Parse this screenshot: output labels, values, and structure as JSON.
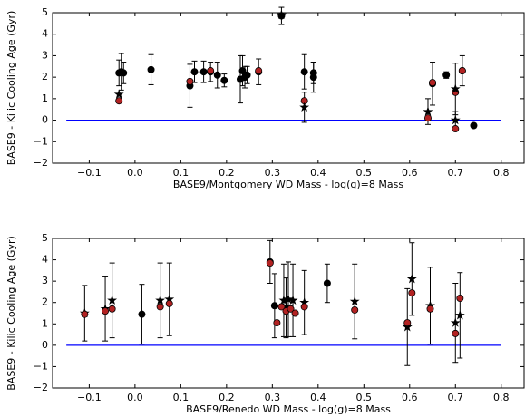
{
  "chart_data": [
    {
      "type": "scatter",
      "x_label": "BASE9/Montgomery WD Mass - log(g)=8 Mass",
      "y_label": "BASE9 - Kilic Cooling Age (Gyr)",
      "xlim": [
        -0.18,
        0.85
      ],
      "ylim": [
        -2,
        5
      ],
      "xticks": [
        {
          "value": -0.1,
          "label": "−0.1"
        },
        {
          "value": 0,
          "label": "0.0"
        },
        0.1,
        0.2,
        0.3,
        0.4,
        0.5,
        0.6,
        0.7,
        0.8
      ],
      "yticks": [
        {
          "value": -2,
          "label": "−2"
        },
        {
          "value": -1,
          "label": "−1"
        },
        0,
        1,
        2,
        3,
        4,
        5
      ],
      "hline": {
        "y": 0,
        "xmin": -0.15,
        "xmax": 0.8,
        "color": "#0000ff"
      },
      "series": [
        {
          "marker": "circle",
          "color": "#000000",
          "x": [
            -0.035,
            -0.03,
            -0.025,
            0.035,
            0.12,
            0.13,
            0.15,
            0.165,
            0.18,
            0.195,
            0.23,
            0.235,
            0.24,
            0.245,
            0.27,
            0.32,
            0.37,
            0.39,
            0.39,
            0.65,
            0.68,
            0.715,
            0.74
          ],
          "values": [
            2.2,
            2.25,
            2.2,
            2.35,
            1.6,
            2.25,
            2.25,
            2.25,
            2.1,
            1.85,
            1.9,
            2.3,
            2.0,
            2.1,
            2.25,
            4.85,
            2.25,
            2.2,
            2.0,
            1.7,
            2.1,
            2.3,
            -0.25
          ],
          "errors": [
            0.6,
            0.85,
            0.5,
            0.7,
            1.0,
            0.5,
            0.5,
            0.45,
            0.6,
            0.3,
            1.1,
            0.7,
            0.5,
            0.4,
            0.6,
            0.4,
            0.8,
            0.5,
            0.7,
            1.0,
            0.15,
            0.7,
            0.1
          ]
        },
        {
          "marker": "circle",
          "color": "#b22222",
          "x": [
            -0.035,
            0.12,
            0.165,
            0.27,
            0.37,
            0.64,
            0.65,
            0.7,
            0.7,
            0.715
          ],
          "values": [
            0.9,
            1.8,
            2.3,
            2.3,
            0.9,
            0.1,
            1.75,
            1.3,
            -0.4,
            2.3
          ]
        },
        {
          "marker": "star",
          "color": "#000000",
          "x": [
            -0.035,
            0.32,
            0.37,
            0.64,
            0.7,
            0.7
          ],
          "values": [
            1.2,
            4.9,
            0.6,
            0.4,
            1.45,
            0.0
          ],
          "errors": [
            null,
            null,
            0.7,
            0.6,
            1.2,
            0.4
          ]
        }
      ]
    },
    {
      "type": "scatter",
      "x_label": "BASE9/Renedo WD Mass - log(g)=8 Mass",
      "y_label": "BASE9 - Kilic Cooling Age (Gyr)",
      "xlim": [
        -0.18,
        0.85
      ],
      "ylim": [
        -2,
        5
      ],
      "xticks": [
        {
          "value": -0.1,
          "label": "−0.1"
        },
        {
          "value": 0,
          "label": "0.0"
        },
        0.1,
        0.2,
        0.3,
        0.4,
        0.5,
        0.6,
        0.7,
        0.8
      ],
      "yticks": [
        {
          "value": -2,
          "label": "−2"
        },
        {
          "value": -1,
          "label": "−1"
        },
        0,
        1,
        2,
        3,
        4,
        5
      ],
      "hline": {
        "y": 0,
        "xmin": -0.15,
        "xmax": 0.8,
        "color": "#0000ff"
      },
      "series": [
        {
          "marker": "star",
          "color": "#000000",
          "x": [
            -0.11,
            -0.065,
            -0.05,
            0.055,
            0.075,
            0.325,
            0.335,
            0.345,
            0.37,
            0.48,
            0.595,
            0.605,
            0.645,
            0.7,
            0.71
          ],
          "values": [
            1.5,
            1.7,
            2.1,
            2.1,
            2.15,
            2.1,
            2.15,
            2.1,
            2.0,
            2.05,
            0.85,
            3.1,
            1.85,
            1.05,
            1.4
          ],
          "errors": [
            1.3,
            1.5,
            1.75,
            1.75,
            1.7,
            1.7,
            1.75,
            1.7,
            1.5,
            1.75,
            1.8,
            1.7,
            1.8,
            1.85,
            2.0
          ]
        },
        {
          "marker": "circle",
          "color": "#000000",
          "x": [
            0.015,
            0.295,
            0.305,
            0.42,
            0.33
          ],
          "values": [
            1.45,
            3.9,
            1.85,
            2.9,
            1.75
          ],
          "errors": [
            1.4,
            1.0,
            1.5,
            0.9,
            1.4
          ]
        },
        {
          "marker": "circle",
          "color": "#b22222",
          "x": [
            -0.11,
            -0.065,
            -0.05,
            0.055,
            0.075,
            0.295,
            0.31,
            0.32,
            0.33,
            0.34,
            0.35,
            0.37,
            0.48,
            0.595,
            0.605,
            0.645,
            0.7,
            0.71
          ],
          "values": [
            1.45,
            1.6,
            1.7,
            1.8,
            1.95,
            3.85,
            1.05,
            1.8,
            1.6,
            1.7,
            1.5,
            1.8,
            1.65,
            1.05,
            2.45,
            1.7,
            0.55,
            2.2
          ]
        }
      ]
    }
  ]
}
